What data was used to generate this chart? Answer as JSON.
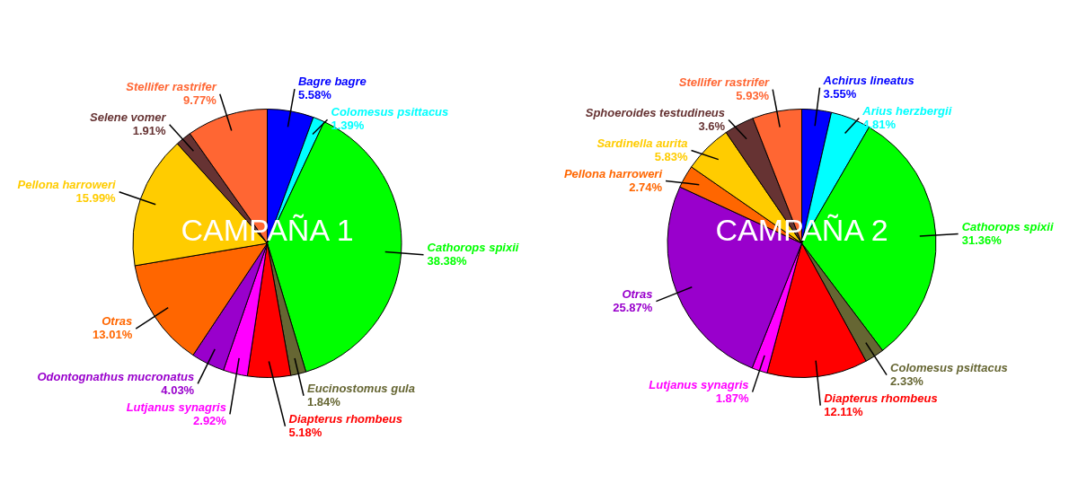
{
  "chart_data": [
    {
      "type": "pie",
      "title": "CAMPAÑA 1",
      "data_labels": true,
      "categories": [
        "Bagre bagre",
        "Colomesus psittacus",
        "Cathorops spixii",
        "Eucinostomus gula",
        "Diapterus rhombeus",
        "Lutjanus synagris",
        "Odontognathus mucronatus",
        "Otras",
        "Pellona harroweri",
        "Selene vomer",
        "Stellifer rastrifer"
      ],
      "values": [
        5.58,
        1.39,
        38.38,
        1.84,
        5.18,
        2.92,
        4.03,
        13.01,
        15.99,
        1.91,
        9.77
      ],
      "value_labels": [
        "5.58%",
        "1.39%",
        "38.38%",
        "1.84%",
        "5.18%",
        "2.92%",
        "4.03%",
        "13.01%",
        "15.99%",
        "1.91%",
        "9.77%"
      ],
      "colors": [
        "#0000ff",
        "#00ffff",
        "#00ff00",
        "#666633",
        "#ff0000",
        "#ff00ff",
        "#9900cc",
        "#ff6600",
        "#ffcc00",
        "#663333",
        "#ff6633"
      ]
    },
    {
      "type": "pie",
      "title": "CAMPAÑA 2",
      "data_labels": true,
      "categories": [
        "Achirus lineatus",
        "Arius herzbergii",
        "Cathorops spixii",
        "Colomesus psittacus",
        "Diapterus rhombeus",
        "Lutjanus synagris",
        "Otras",
        "Pellona harroweri",
        "Sardinella aurita",
        "Sphoeroides testudineus",
        "Stellifer rastrifer"
      ],
      "values": [
        3.55,
        4.81,
        31.36,
        2.33,
        12.11,
        1.87,
        25.87,
        2.74,
        5.83,
        3.6,
        5.93
      ],
      "value_labels": [
        "3.55%",
        "4.81%",
        "31.36%",
        "2.33%",
        "12.11%",
        "1.87%",
        "25.87%",
        "2.74%",
        "5.83%",
        "3.6%",
        "5.93%"
      ],
      "colors": [
        "#0000ff",
        "#00ffff",
        "#00ff00",
        "#666633",
        "#ff0000",
        "#ff00ff",
        "#9900cc",
        "#ff6600",
        "#ffcc00",
        "#663333",
        "#ff6633"
      ]
    }
  ]
}
